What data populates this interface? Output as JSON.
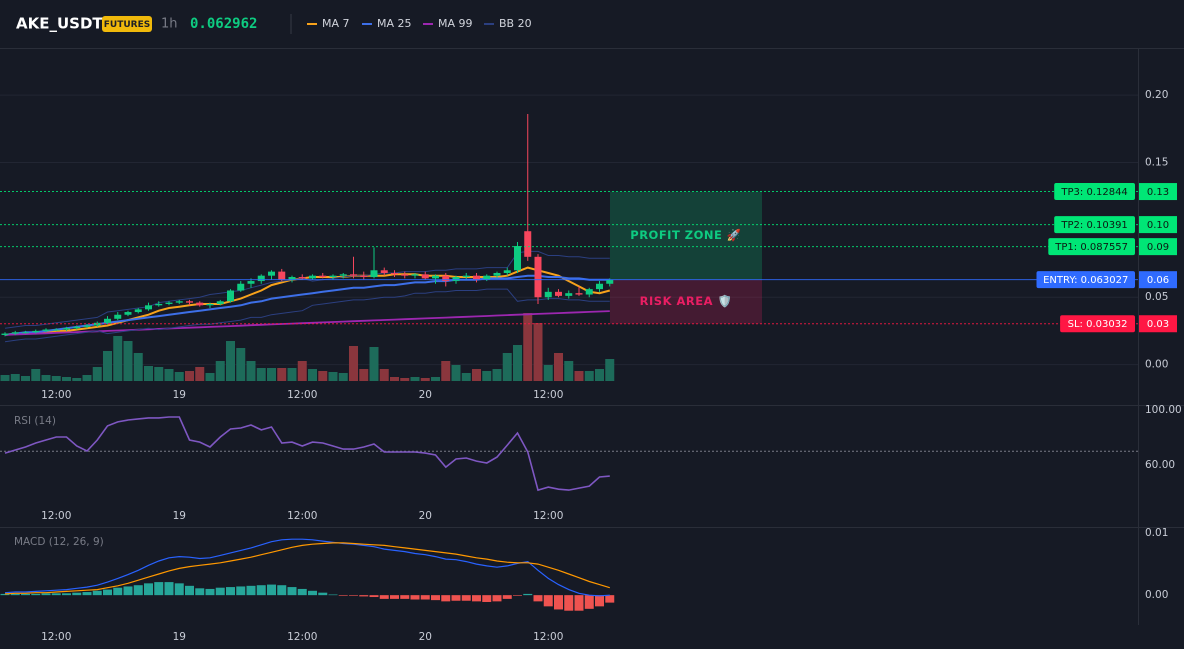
{
  "header": {
    "symbol": "AKE_USDT",
    "badge": "FUTURES",
    "interval": "1h",
    "price": 0.062962
  },
  "chart_data": [
    {
      "type": "candlestick",
      "categories": [
        null,
        null,
        null,
        null,
        null,
        "12:00",
        null,
        null,
        null,
        null,
        null,
        null,
        null,
        null,
        null,
        null,
        null,
        "19",
        null,
        null,
        null,
        null,
        null,
        null,
        null,
        null,
        null,
        null,
        null,
        "12:00",
        null,
        null,
        null,
        null,
        null,
        null,
        null,
        null,
        null,
        null,
        null,
        "20",
        null,
        null,
        null,
        null,
        null,
        null,
        null,
        null,
        null,
        null,
        null,
        "12:00",
        null,
        null,
        null,
        null,
        null,
        null
      ],
      "open": [
        0.022,
        0.023,
        0.024,
        0.024,
        0.025,
        0.026,
        0.026,
        0.027,
        0.028,
        0.029,
        0.031,
        0.034,
        0.037,
        0.039,
        0.041,
        0.044,
        0.045,
        0.046,
        0.047,
        0.046,
        0.044,
        0.045,
        0.047,
        0.055,
        0.06,
        0.062,
        0.066,
        0.069,
        0.063,
        0.065,
        0.064,
        0.066,
        0.065,
        0.066,
        0.067,
        0.066,
        0.065,
        0.07,
        0.068,
        0.067,
        0.066,
        0.067,
        0.064,
        0.066,
        0.062,
        0.065,
        0.066,
        0.063,
        0.066,
        0.068,
        0.07,
        0.099,
        0.08,
        0.05,
        0.054,
        0.051,
        0.053,
        0.052,
        0.056,
        0.06
      ],
      "high": [
        0.024,
        0.025,
        0.025,
        0.026,
        0.027,
        0.027,
        0.028,
        0.029,
        0.03,
        0.032,
        0.036,
        0.039,
        0.04,
        0.042,
        0.046,
        0.047,
        0.047,
        0.048,
        0.048,
        0.047,
        0.046,
        0.048,
        0.056,
        0.062,
        0.064,
        0.067,
        0.07,
        0.071,
        0.066,
        0.067,
        0.067,
        0.068,
        0.067,
        0.068,
        0.08,
        0.069,
        0.087,
        0.072,
        0.07,
        0.069,
        0.068,
        0.069,
        0.067,
        0.068,
        0.066,
        0.068,
        0.068,
        0.067,
        0.069,
        0.072,
        0.091,
        0.186,
        0.082,
        0.057,
        0.056,
        0.055,
        0.058,
        0.057,
        0.062,
        0.064
      ],
      "low": [
        0.021,
        0.022,
        0.023,
        0.023,
        0.024,
        0.025,
        0.025,
        0.026,
        0.027,
        0.028,
        0.03,
        0.033,
        0.036,
        0.038,
        0.04,
        0.043,
        0.044,
        0.045,
        0.044,
        0.043,
        0.042,
        0.044,
        0.046,
        0.054,
        0.057,
        0.06,
        0.063,
        0.062,
        0.061,
        0.063,
        0.063,
        0.064,
        0.063,
        0.064,
        0.064,
        0.063,
        0.064,
        0.066,
        0.065,
        0.064,
        0.064,
        0.063,
        0.06,
        0.058,
        0.06,
        0.063,
        0.061,
        0.062,
        0.064,
        0.066,
        0.068,
        0.077,
        0.045,
        0.048,
        0.05,
        0.049,
        0.051,
        0.05,
        0.054,
        0.058
      ],
      "close": [
        0.023,
        0.024,
        0.024,
        0.025,
        0.026,
        0.026,
        0.027,
        0.028,
        0.029,
        0.031,
        0.034,
        0.037,
        0.039,
        0.041,
        0.044,
        0.045,
        0.046,
        0.047,
        0.046,
        0.044,
        0.045,
        0.047,
        0.055,
        0.06,
        0.062,
        0.066,
        0.069,
        0.063,
        0.065,
        0.064,
        0.066,
        0.065,
        0.066,
        0.067,
        0.066,
        0.065,
        0.07,
        0.068,
        0.067,
        0.066,
        0.067,
        0.064,
        0.066,
        0.062,
        0.065,
        0.066,
        0.063,
        0.066,
        0.068,
        0.07,
        0.088,
        0.08,
        0.05,
        0.054,
        0.051,
        0.053,
        0.052,
        0.056,
        0.06,
        0.063
      ],
      "up_color": "#0ecb81",
      "down_color": "#f6465d",
      "volume": [
        6,
        7,
        5,
        12,
        6,
        5,
        4,
        3,
        6,
        14,
        30,
        45,
        40,
        28,
        15,
        14,
        12,
        9,
        10,
        14,
        8,
        20,
        40,
        33,
        20,
        13,
        13,
        13,
        13,
        20,
        12,
        10,
        9,
        8,
        35,
        12,
        34,
        12,
        4,
        3,
        4,
        3,
        4,
        20,
        16,
        8,
        12,
        10,
        12,
        28,
        36,
        68,
        58,
        16,
        28,
        20,
        10,
        10,
        12,
        22
      ],
      "volume_up_color": "#1d6b5a",
      "volume_down_color": "#8a363d",
      "series": [
        {
          "name": "MA 7",
          "color": "#f7a21b",
          "values": [
            0.022,
            0.023,
            0.023,
            0.024,
            0.024,
            0.025,
            0.025,
            0.026,
            0.027,
            0.028,
            0.029,
            0.031,
            0.033,
            0.035,
            0.037,
            0.04,
            0.042,
            0.043,
            0.044,
            0.045,
            0.045,
            0.045,
            0.047,
            0.049,
            0.052,
            0.055,
            0.059,
            0.061,
            0.063,
            0.064,
            0.065,
            0.065,
            0.065,
            0.065,
            0.066,
            0.066,
            0.066,
            0.066,
            0.067,
            0.067,
            0.067,
            0.066,
            0.066,
            0.066,
            0.065,
            0.065,
            0.065,
            0.065,
            0.065,
            0.066,
            0.069,
            0.072,
            0.07,
            0.068,
            0.066,
            0.062,
            0.058,
            0.054,
            0.053,
            0.055
          ]
        },
        {
          "name": "MA 25",
          "color": "#3d6fe8",
          "values": [
            0.022,
            0.023,
            0.024,
            0.024,
            0.025,
            0.026,
            0.027,
            0.028,
            0.029,
            0.03,
            0.031,
            0.032,
            0.033,
            0.034,
            0.035,
            0.036,
            0.037,
            0.038,
            0.039,
            0.04,
            0.041,
            0.042,
            0.043,
            0.044,
            0.046,
            0.047,
            0.049,
            0.05,
            0.051,
            0.052,
            0.053,
            0.054,
            0.055,
            0.056,
            0.057,
            0.057,
            0.058,
            0.059,
            0.059,
            0.06,
            0.061,
            0.061,
            0.062,
            0.062,
            0.063,
            0.063,
            0.063,
            0.064,
            0.064,
            0.064,
            0.065,
            0.066,
            0.066,
            0.065,
            0.065,
            0.064,
            0.064,
            0.063,
            0.063,
            0.063
          ]
        },
        {
          "name": "MA 99",
          "color": "#9c27b0",
          "values": [
            0.022,
            0.0223,
            0.0226,
            0.0229,
            0.0232,
            0.0235,
            0.0238,
            0.0241,
            0.0244,
            0.0247,
            0.025,
            0.0253,
            0.0256,
            0.0259,
            0.0262,
            0.0265,
            0.0268,
            0.0271,
            0.0274,
            0.0277,
            0.028,
            0.0283,
            0.0286,
            0.0289,
            0.0292,
            0.0295,
            0.0298,
            0.0301,
            0.0304,
            0.0307,
            0.031,
            0.0313,
            0.0316,
            0.0319,
            0.0322,
            0.0325,
            0.0328,
            0.0331,
            0.0334,
            0.0337,
            0.034,
            0.0343,
            0.0346,
            0.0349,
            0.0352,
            0.0355,
            0.0358,
            0.0361,
            0.0364,
            0.0367,
            0.037,
            0.0373,
            0.0376,
            0.0379,
            0.0382,
            0.0385,
            0.0388,
            0.0391,
            0.0394,
            0.0397
          ]
        },
        {
          "name": "BB 20",
          "color": "#2b3f80",
          "upper": [
            0.027,
            0.028,
            0.029,
            0.029,
            0.03,
            0.031,
            0.032,
            0.033,
            0.034,
            0.035,
            0.039,
            0.04,
            0.041,
            0.042,
            0.043,
            0.046,
            0.047,
            0.048,
            0.049,
            0.05,
            0.052,
            0.053,
            0.054,
            0.055,
            0.057,
            0.059,
            0.061,
            0.062,
            0.063,
            0.064,
            0.062,
            0.063,
            0.064,
            0.065,
            0.066,
            0.066,
            0.067,
            0.068,
            0.068,
            0.069,
            0.069,
            0.069,
            0.07,
            0.07,
            0.071,
            0.071,
            0.071,
            0.072,
            0.072,
            0.072,
            0.083,
            0.084,
            0.084,
            0.081,
            0.081,
            0.08,
            0.08,
            0.079,
            0.079,
            0.079
          ],
          "lower": [
            0.017,
            0.018,
            0.019,
            0.019,
            0.02,
            0.021,
            0.022,
            0.023,
            0.024,
            0.025,
            0.023,
            0.024,
            0.025,
            0.026,
            0.027,
            0.026,
            0.027,
            0.028,
            0.029,
            0.03,
            0.03,
            0.031,
            0.032,
            0.033,
            0.035,
            0.035,
            0.037,
            0.038,
            0.039,
            0.04,
            0.044,
            0.045,
            0.046,
            0.047,
            0.048,
            0.048,
            0.049,
            0.05,
            0.05,
            0.051,
            0.053,
            0.053,
            0.054,
            0.054,
            0.055,
            0.055,
            0.055,
            0.056,
            0.056,
            0.056,
            0.047,
            0.048,
            0.048,
            0.049,
            0.049,
            0.048,
            0.048,
            0.047,
            0.047,
            0.047
          ]
        }
      ],
      "ylim": [
        -0.03,
        0.235
      ],
      "yticks": [
        {
          "value": 0.2,
          "label": "0.20"
        },
        {
          "value": 0.15,
          "label": "0.15"
        },
        {
          "value": 0.05,
          "label": "0.05"
        },
        {
          "value": 0,
          "label": "0.00"
        }
      ],
      "grid": true,
      "levels": [
        {
          "label": "TP3: 0.12844",
          "value": 0.12844,
          "axis_label": "0.13",
          "color": "#00e676",
          "style": "dotted"
        },
        {
          "label": "TP2: 0.10391",
          "value": 0.10391,
          "axis_label": "0.10",
          "color": "#00e676",
          "style": "dotted"
        },
        {
          "label": "TP1: 0.087557",
          "value": 0.087557,
          "axis_label": "0.09",
          "color": "#00e676",
          "style": "dotted"
        },
        {
          "label": "ENTRY: 0.063027",
          "value": 0.063027,
          "axis_label": "0.06",
          "color": "#2f6bff",
          "style": "solid"
        },
        {
          "label": "SL: 0.03032",
          "value": 0.03032,
          "axis_label": "0.03",
          "color": "#ff1744",
          "style": "dotted"
        }
      ],
      "zones": [
        {
          "label": "PROFIT ZONE 🚀",
          "from": 0.063027,
          "to": 0.12844,
          "color": "#0ecb81"
        },
        {
          "label": "RISK AREA 🛡️",
          "from": 0.03032,
          "to": 0.063027,
          "color": "#e91e63"
        }
      ]
    },
    {
      "type": "line",
      "title": "RSI (14)",
      "categories": [
        null,
        null,
        null,
        null,
        null,
        "12:00",
        null,
        null,
        null,
        null,
        null,
        null,
        null,
        null,
        null,
        null,
        null,
        "19",
        null,
        null,
        null,
        null,
        null,
        null,
        null,
        null,
        null,
        null,
        null,
        "12:00",
        null,
        null,
        null,
        null,
        null,
        null,
        null,
        null,
        null,
        null,
        null,
        "20",
        null,
        null,
        null,
        null,
        null,
        null,
        null,
        null,
        null,
        null,
        null,
        "12:00",
        null,
        null,
        null,
        null,
        null,
        null
      ],
      "values": [
        68.7,
        70.9,
        73.1,
        76,
        78.2,
        80.4,
        80.4,
        73.8,
        70.2,
        78.2,
        88.4,
        91.3,
        92.7,
        93.5,
        94.2,
        94.2,
        94.9,
        94.9,
        78.2,
        76.7,
        73.1,
        80.4,
        86.2,
        86.9,
        89.1,
        85.5,
        87.6,
        76,
        76.7,
        73.8,
        76.7,
        76,
        73.8,
        71.6,
        71.6,
        73.1,
        75.3,
        69.5,
        69.5,
        69.5,
        69.5,
        68.7,
        67.3,
        58.5,
        64.4,
        65.1,
        62.9,
        61.5,
        65.8,
        74.5,
        83.3,
        69.5,
        41.8,
        44,
        42.5,
        41.8,
        43.3,
        44.7,
        51.3,
        52
      ],
      "color": "#7e57c2",
      "reference": 70,
      "ylim": [
        31,
        103.6
      ],
      "yticks": [
        {
          "value": 100,
          "label": "100.00"
        },
        {
          "value": 60,
          "label": "60.00"
        }
      ],
      "grid": false
    },
    {
      "type": "macd",
      "title": "MACD (12, 26, 9)",
      "categories": [
        null,
        null,
        null,
        null,
        null,
        "12:00",
        null,
        null,
        null,
        null,
        null,
        null,
        null,
        null,
        null,
        null,
        null,
        "19",
        null,
        null,
        null,
        null,
        null,
        null,
        null,
        null,
        null,
        null,
        null,
        "12:00",
        null,
        null,
        null,
        null,
        null,
        null,
        null,
        null,
        null,
        null,
        null,
        "20",
        null,
        null,
        null,
        null,
        null,
        null,
        null,
        null,
        null,
        null,
        null,
        "12:00",
        null,
        null,
        null,
        null,
        null,
        null
      ],
      "macd": [
        0.0004,
        0.0005,
        0.0005,
        0.0006,
        0.0007,
        0.0008,
        0.0009,
        0.0011,
        0.0013,
        0.0016,
        0.0021,
        0.0027,
        0.0033,
        0.004,
        0.0048,
        0.0055,
        0.006,
        0.0062,
        0.0061,
        0.0059,
        0.006,
        0.0064,
        0.0068,
        0.0072,
        0.0076,
        0.0081,
        0.0086,
        0.0089,
        0.009,
        0.009,
        0.0089,
        0.0087,
        0.0085,
        0.0083,
        0.0082,
        0.008,
        0.0078,
        0.0074,
        0.0072,
        0.007,
        0.0067,
        0.0065,
        0.0062,
        0.0058,
        0.0057,
        0.0054,
        0.005,
        0.0047,
        0.0045,
        0.0047,
        0.0051,
        0.0054,
        0.004,
        0.0027,
        0.0017,
        0.0009,
        0.0003,
        0,
        -0.0001,
        0
      ],
      "signal": [
        0.0002,
        0.0003,
        0.0003,
        0.0004,
        0.0004,
        0.0005,
        0.0006,
        0.0007,
        0.0008,
        0.0009,
        0.0012,
        0.0015,
        0.0019,
        0.0024,
        0.0029,
        0.0034,
        0.0039,
        0.0043,
        0.0046,
        0.0048,
        0.005,
        0.0052,
        0.0055,
        0.0058,
        0.0061,
        0.0065,
        0.0069,
        0.0073,
        0.0077,
        0.008,
        0.0082,
        0.0083,
        0.0084,
        0.0084,
        0.0083,
        0.0082,
        0.0081,
        0.008,
        0.0078,
        0.0076,
        0.0074,
        0.0072,
        0.007,
        0.0068,
        0.0066,
        0.0063,
        0.006,
        0.0058,
        0.0055,
        0.0053,
        0.0052,
        0.0052,
        0.005,
        0.0045,
        0.004,
        0.0034,
        0.0028,
        0.0022,
        0.0017,
        0.0012
      ],
      "histogram": [
        0.0002,
        0.0002,
        0.0002,
        0.0002,
        0.0003,
        0.0003,
        0.0003,
        0.0004,
        0.0005,
        0.0007,
        0.0009,
        0.0012,
        0.0014,
        0.0016,
        0.0019,
        0.0021,
        0.0021,
        0.0019,
        0.0015,
        0.0011,
        0.001,
        0.0012,
        0.0013,
        0.0014,
        0.0015,
        0.0016,
        0.0017,
        0.0016,
        0.0013,
        0.001,
        0.0007,
        0.0004,
        0.0001,
        -0.0001,
        -0.0001,
        -0.0002,
        -0.0003,
        -0.0006,
        -0.0006,
        -0.0006,
        -0.0007,
        -0.0007,
        -0.0008,
        -0.001,
        -0.0009,
        -0.0009,
        -0.001,
        -0.0011,
        -0.001,
        -0.0006,
        -0.0001,
        0.0002,
        -0.001,
        -0.0018,
        -0.0023,
        -0.0025,
        -0.0025,
        -0.0022,
        -0.0018,
        -0.0012
      ],
      "macd_color": "#2962ff",
      "signal_color": "#ff9800",
      "positive_color": "#26a69a",
      "negative_color": "#ef5350",
      "ylim": [
        -0.0048,
        0.0108
      ],
      "yticks": [
        {
          "value": 0.01,
          "label": "0.01"
        },
        {
          "value": 0,
          "label": "0.00"
        }
      ],
      "grid": false
    }
  ]
}
